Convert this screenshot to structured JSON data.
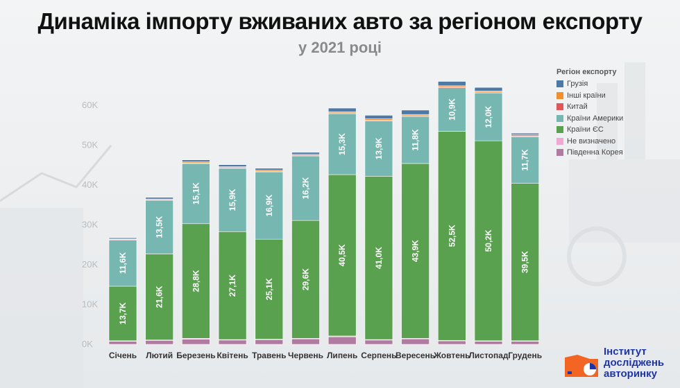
{
  "title": "Динаміка імпорту вживаних авто за регіоном експорту",
  "subtitle": "у 2021 році",
  "legend": {
    "title": "Регіон експорту",
    "items": [
      {
        "label": "Грузія",
        "color": "#4e79a7"
      },
      {
        "label": "Інші країни",
        "color": "#f28e2b"
      },
      {
        "label": "Китай",
        "color": "#e15759"
      },
      {
        "label": "Країни Америки",
        "color": "#76b7b2"
      },
      {
        "label": "Країни ЄС",
        "color": "#59a14f"
      },
      {
        "label": "Не визначено",
        "color": "#f1a9d3"
      },
      {
        "label": "Південна Корея",
        "color": "#b07aa1"
      }
    ]
  },
  "logo": {
    "line1": "Інститут",
    "line2": "досліджень",
    "line3": "авторинку"
  },
  "chart_data": {
    "type": "bar",
    "stacked": true,
    "ylim": [
      0,
      65000
    ],
    "yticks": [
      "0K",
      "10K",
      "20K",
      "30K",
      "40K",
      "50K",
      "60K"
    ],
    "categories": [
      "Січень",
      "Лютий",
      "Березень",
      "Квітень",
      "Травень",
      "Червень",
      "Липень",
      "Серпень",
      "Вересень",
      "Жовтень",
      "Листопад",
      "Грудень"
    ],
    "series": [
      {
        "name": "Південна Корея",
        "color": "#b07aa1",
        "values": [
          800,
          1000,
          1300,
          1100,
          1200,
          1400,
          1900,
          1100,
          1400,
          900,
          800,
          800
        ]
      },
      {
        "name": "Не визначено",
        "color": "#f1a9d3",
        "values": [
          100,
          100,
          200,
          100,
          100,
          100,
          200,
          100,
          100,
          100,
          100,
          100
        ]
      },
      {
        "name": "Країни ЄС",
        "color": "#59a14f",
        "values": [
          13700,
          21600,
          28800,
          27100,
          25100,
          29600,
          40500,
          41000,
          43900,
          52500,
          50200,
          39500
        ],
        "labels": [
          "13,7K",
          "21,6K",
          "28,8K",
          "27,1K",
          "25,1K",
          "29,6K",
          "40,5K",
          "41,0K",
          "43,9K",
          "52,5K",
          "50,2K",
          "39,5K"
        ]
      },
      {
        "name": "Країни Америки",
        "color": "#76b7b2",
        "values": [
          11600,
          13500,
          15100,
          15900,
          16900,
          16200,
          15300,
          13900,
          11800,
          10900,
          12000,
          11700
        ],
        "labels": [
          "11,6K",
          "13,5K",
          "15,1K",
          "15,9K",
          "16,9K",
          "16,2K",
          "15,3K",
          "13,9K",
          "11,8K",
          "10,9K",
          "12,0K",
          "11,7K"
        ]
      },
      {
        "name": "Китай",
        "color": "#e15759",
        "values": [
          100,
          100,
          150,
          150,
          150,
          150,
          200,
          200,
          200,
          200,
          200,
          200
        ]
      },
      {
        "name": "Інші країни",
        "color": "#f28e2b",
        "values": [
          150,
          200,
          250,
          250,
          250,
          250,
          300,
          300,
          300,
          300,
          300,
          300
        ]
      },
      {
        "name": "Грузія",
        "color": "#4e79a7",
        "values": [
          300,
          400,
          500,
          500,
          500,
          500,
          900,
          900,
          1100,
          1100,
          900,
          400
        ]
      }
    ]
  }
}
